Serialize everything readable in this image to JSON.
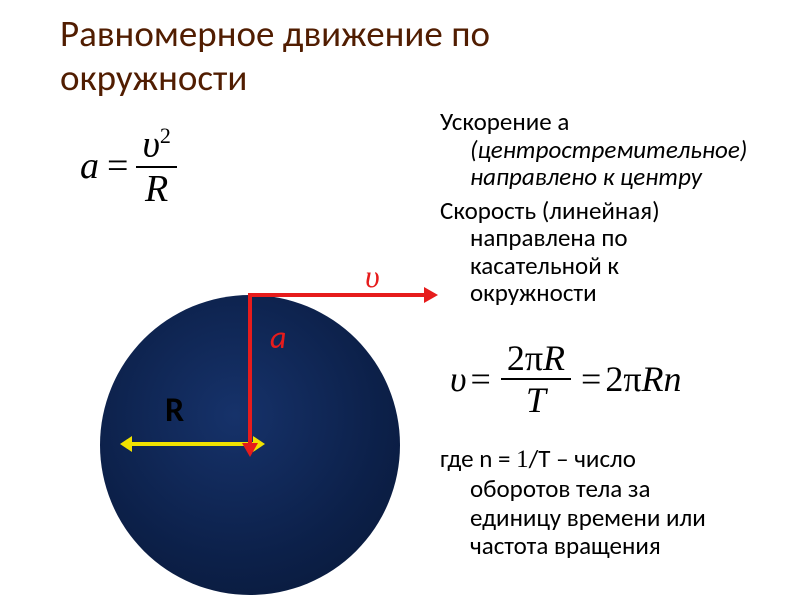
{
  "title_line1": "Равномерное движение по",
  "title_line2": "окружности",
  "formula_accel": {
    "lhs": "a",
    "equals": "=",
    "numerator": "υ",
    "num_sup": "2",
    "denominator": "R"
  },
  "paragraph1": {
    "lead": "Ускорение a",
    "cont1": "(центростремительное)",
    "cont2": "направлено к центру"
  },
  "paragraph2": {
    "lead": "Скорость (линейная)",
    "cont1": "направлена по",
    "cont2": "касательной к",
    "cont3": "окружности"
  },
  "formula_vel": {
    "lhs": "υ",
    "equals1": "=",
    "num1_a": "2π",
    "num1_b": "R",
    "den1": "T",
    "equals2": "=",
    "rhs2_a": "2π",
    "rhs2_b": "Rn"
  },
  "paragraph3": {
    "lead_a": "где n = ",
    "lead_b": "1",
    "lead_c": "/T – число",
    "cont1": "оборотов тела за",
    "cont2": "единицу времени или",
    "cont3": "частота вращения"
  },
  "diagram": {
    "circle_fill_inner": "#16326a",
    "circle_fill_outer": "#081735",
    "radius_arrow_color": "#f0e200",
    "vector_color": "#e61c1c",
    "label_R": "R",
    "label_a": "a",
    "label_v": "υ",
    "label_R_color": "#000000",
    "label_a_color": "#e61c1c",
    "label_v_color": "#e61c1c"
  },
  "colors": {
    "title": "#511d01",
    "text": "#000000",
    "background": "#ffffff"
  },
  "fontsizes": {
    "title": 37,
    "body": 25,
    "formula": 38,
    "labels": 32
  }
}
